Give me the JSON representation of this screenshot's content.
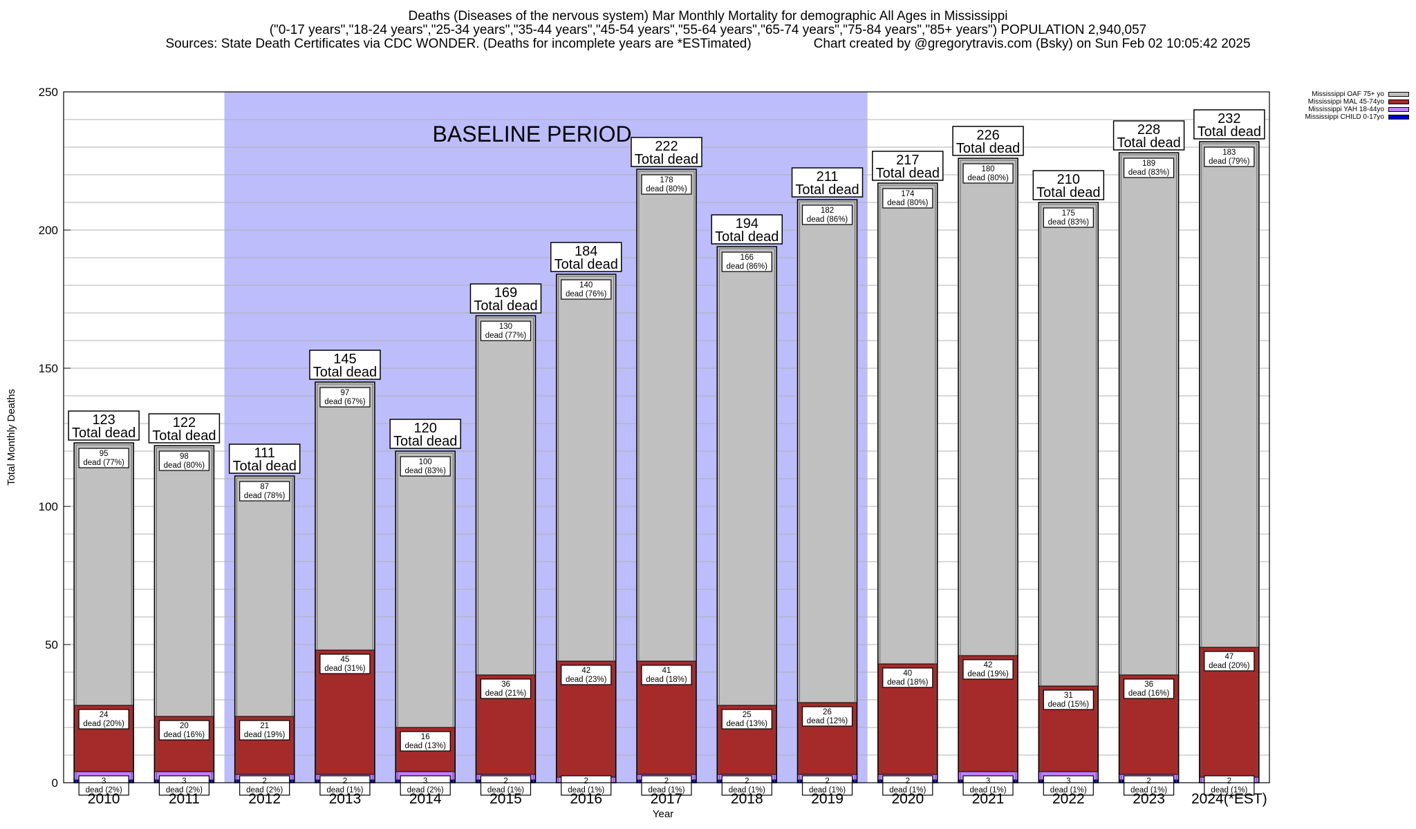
{
  "header": {
    "title": "Deaths (Diseases of the nervous system) Mar Monthly Mortality for demographic All Ages in Mississippi",
    "subtitle": "(\"0-17 years\",\"18-24 years\",\"25-34 years\",\"35-44 years\",\"45-54 years\",\"55-64 years\",\"65-74 years\",\"75-84 years\",\"85+ years\") POPULATION 2,940,057",
    "sources": "Sources: State Death Certificates via CDC WONDER. (Deaths for incomplete years are *ESTimated)",
    "credit": "Chart created by @gregorytravis.com (Bsky) on Sun Feb 02 10:05:42 2025"
  },
  "chart_data": {
    "type": "bar",
    "stacked": true,
    "xlabel": "Year",
    "ylabel": "Total Monthly Deaths",
    "ylim": [
      0,
      250
    ],
    "yticks": [
      0,
      50,
      100,
      150,
      200,
      250
    ],
    "grid": true,
    "legend_position": "top-right",
    "annotation": "BASELINE PERIOD",
    "baseline_range": [
      "2012",
      "2019"
    ],
    "total_label": "Total dead",
    "dead_label": "dead",
    "categories": [
      "2010",
      "2011",
      "2012",
      "2013",
      "2014",
      "2015",
      "2016",
      "2017",
      "2018",
      "2019",
      "2020",
      "2021",
      "2022",
      "2023",
      "2024(*EST)"
    ],
    "totals": [
      123,
      122,
      111,
      145,
      120,
      169,
      184,
      222,
      194,
      211,
      217,
      226,
      210,
      228,
      232
    ],
    "series": [
      {
        "name": "Mississippi CHILD 0-17yo",
        "color": "#0000cc",
        "values": [
          1,
          1,
          1,
          1,
          1,
          1,
          0,
          1,
          1,
          1,
          1,
          1,
          1,
          1,
          0
        ]
      },
      {
        "name": "Mississippi YAH 18-44yo",
        "color": "#c080ff",
        "values": [
          3,
          3,
          2,
          2,
          3,
          2,
          2,
          2,
          2,
          2,
          2,
          3,
          3,
          2,
          2
        ],
        "labels": [
          "(2%)",
          "(2%)",
          "(2%)",
          "(1%)",
          "(2%)",
          "(1%)",
          "(1%)",
          "(1%)",
          "(1%)",
          "(1%)",
          "(1%)",
          "(1%)",
          "(1%)",
          "(1%)",
          "(1%)"
        ]
      },
      {
        "name": "Mississippi MAL 45-74yo",
        "color": "#a52a2a",
        "values": [
          24,
          20,
          21,
          45,
          16,
          36,
          42,
          41,
          25,
          26,
          40,
          42,
          31,
          36,
          47
        ],
        "labels": [
          "(20%)",
          "(16%)",
          "(19%)",
          "(31%)",
          "(13%)",
          "(21%)",
          "(23%)",
          "(18%)",
          "(13%)",
          "(12%)",
          "(18%)",
          "(19%)",
          "(15%)",
          "(16%)",
          "(20%)"
        ]
      },
      {
        "name": "Mississippi OAF 75+ yo",
        "color": "#c0c0c0",
        "values": [
          95,
          98,
          87,
          97,
          100,
          130,
          140,
          178,
          166,
          182,
          174,
          180,
          175,
          189,
          183
        ],
        "labels": [
          "(77%)",
          "(80%)",
          "(78%)",
          "(67%)",
          "(83%)",
          "(77%)",
          "(76%)",
          "(80%)",
          "(86%)",
          "(86%)",
          "(80%)",
          "(80%)",
          "(83%)",
          "(83%)",
          "(79%)"
        ]
      }
    ]
  }
}
